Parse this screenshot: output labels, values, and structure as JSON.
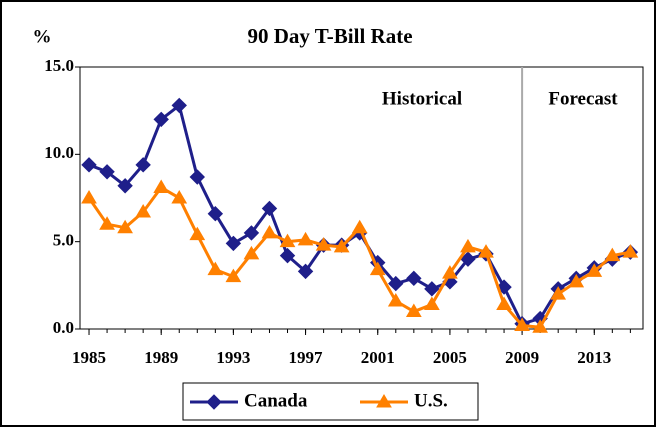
{
  "chart_data": {
    "type": "line",
    "title": "90 Day T-Bill Rate",
    "y_label": "%",
    "annotations": [
      "Historical",
      "Forecast"
    ],
    "divider_x": 2009,
    "x": [
      1985,
      1986,
      1987,
      1988,
      1989,
      1990,
      1991,
      1992,
      1993,
      1994,
      1995,
      1996,
      1997,
      1998,
      1999,
      2000,
      2001,
      2002,
      2003,
      2004,
      2005,
      2006,
      2007,
      2008,
      2009,
      2010,
      2011,
      2012,
      2013,
      2014,
      2015
    ],
    "xlim": [
      1984.5,
      2015.7
    ],
    "xticks": [
      1985,
      1989,
      1993,
      1997,
      2001,
      2005,
      2009,
      2013
    ],
    "ylim": [
      0,
      15
    ],
    "yticks": [
      {
        "value": 0,
        "label": "0.0"
      },
      {
        "value": 5,
        "label": "5.0"
      },
      {
        "value": 10,
        "label": "10.0"
      },
      {
        "value": 15,
        "label": "15.0"
      }
    ],
    "legend": "bottom",
    "series": [
      {
        "name": "Canada",
        "color": "#1f1f8a",
        "marker": "diamond",
        "values": [
          9.4,
          9.0,
          8.2,
          9.4,
          12.0,
          12.8,
          8.7,
          6.6,
          4.9,
          5.5,
          6.9,
          4.2,
          3.3,
          4.8,
          4.8,
          5.5,
          3.8,
          2.6,
          2.9,
          2.3,
          2.7,
          4.0,
          4.3,
          2.4,
          0.3,
          0.6,
          2.3,
          2.9,
          3.5,
          4.0,
          4.4
        ]
      },
      {
        "name": "U.S.",
        "color": "#ff8000",
        "marker": "triangle",
        "values": [
          7.5,
          6.0,
          5.8,
          6.7,
          8.1,
          7.5,
          5.4,
          3.4,
          3.0,
          4.3,
          5.5,
          5.0,
          5.1,
          4.8,
          4.7,
          5.8,
          3.4,
          1.6,
          1.0,
          1.4,
          3.2,
          4.7,
          4.4,
          1.4,
          0.2,
          0.1,
          2.0,
          2.7,
          3.3,
          4.2,
          4.4
        ]
      }
    ]
  }
}
